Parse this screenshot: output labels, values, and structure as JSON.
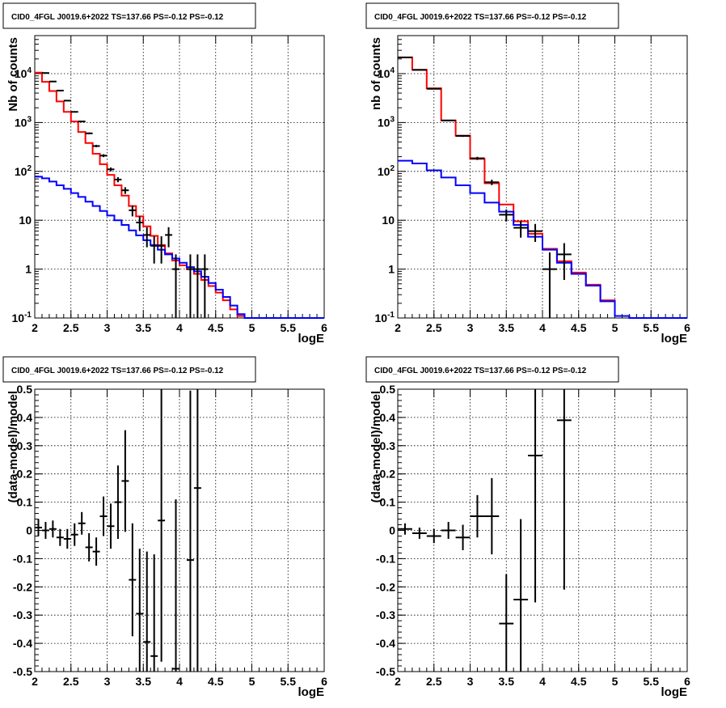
{
  "panels": [
    {
      "title": "CID0_4FGL J0019.6+2022 TS=137.66 PS=-0.12 PS=-0.12",
      "xlabel": "logE",
      "ylabel": "Nb of counts"
    },
    {
      "title": "CID0_4FGL J0019.6+2022 TS=137.66 PS=-0.12 PS=-0.12",
      "xlabel": "logE",
      "ylabel": "nb of counts"
    },
    {
      "title": "CID0_4FGL J0019.6+2022 TS=137.66 PS=-0.12 PS=-0.12",
      "xlabel": "logE",
      "ylabel": "(data-model)/model"
    },
    {
      "title": "CID0_4FGL J0019.6+2022 TS=137.66 PS=-0.12 PS=-0.12",
      "xlabel": "logE",
      "ylabel": "(data-model)/model"
    }
  ],
  "colors": {
    "data": "#000000",
    "total_model": "#ff0000",
    "background_model": "#0000ff",
    "grid": "#000000"
  },
  "chart_data": [
    {
      "type": "line",
      "title": "CID0_4FGL J0019.6+2022 TS=137.66 PS=-0.12 PS=-0.12",
      "xlabel": "logE",
      "ylabel": "Nb of counts",
      "xlim": [
        2,
        6
      ],
      "ylim": [
        0.1,
        60000
      ],
      "yscale": "log",
      "grid": true,
      "xticks": [
        "2",
        "2.5",
        "3",
        "3.5",
        "4",
        "4.5",
        "5",
        "5.5",
        "6"
      ],
      "yticks": [
        "10^-1",
        "1",
        "10",
        "10^2",
        "10^3",
        "10^4"
      ],
      "bin_edges": [
        2,
        2.1,
        2.2,
        2.3,
        2.4,
        2.5,
        2.6,
        2.7,
        2.8,
        2.9,
        3,
        3.1,
        3.2,
        3.3,
        3.4,
        3.5,
        3.6,
        3.7,
        3.8,
        3.9,
        4,
        4.1,
        4.2,
        4.3,
        4.4,
        4.5,
        4.6,
        4.7,
        4.8,
        4.9,
        5,
        5.1,
        5.2,
        5.3,
        5.4,
        5.5,
        5.6,
        5.7,
        5.8,
        5.9,
        6
      ],
      "series": [
        {
          "name": "",
          "style": "step",
          "color": "#ff0000",
          "values": [
            10500,
            6800,
            4400,
            2700,
            1650,
            1050,
            640,
            380,
            230,
            140,
            85,
            52,
            32,
            19.5,
            12,
            7.5,
            4.8,
            3.1,
            2.1,
            1.5,
            1.2,
            1.0,
            0.8,
            0.6,
            0.45,
            0.33,
            0.23,
            0.15,
            0.11,
            0.1,
            0.1,
            0.1,
            0.1,
            0.1,
            0.1,
            0.1,
            0.1,
            0.1,
            0.1,
            0.1
          ]
        },
        {
          "name": "",
          "style": "step",
          "color": "#0000ff",
          "values": [
            78,
            72,
            62,
            52,
            44,
            36,
            30,
            24,
            19.5,
            15.5,
            12.5,
            10,
            8,
            6.2,
            4.9,
            3.9,
            3.1,
            2.5,
            2,
            1.65,
            1.35,
            1.1,
            0.9,
            0.7,
            0.52,
            0.38,
            0.27,
            0.18,
            0.12,
            0.1,
            0.1,
            0.1,
            0.1,
            0.1,
            0.1,
            0.1,
            0.1,
            0.1,
            0.1,
            0.1
          ]
        },
        {
          "name": "",
          "style": "errorbar",
          "color": "#000000",
          "x": [
            2.15,
            2.25,
            2.35,
            2.45,
            2.55,
            2.65,
            2.75,
            2.85,
            2.95,
            3.05,
            3.15,
            3.25,
            3.35,
            3.45,
            3.55,
            3.65,
            3.75,
            3.85,
            3.95,
            4.15,
            4.25,
            4.35
          ],
          "values": [
            10300,
            6900,
            4500,
            2800,
            1650,
            1050,
            600,
            330,
            210,
            110,
            68,
            41,
            16,
            9,
            5,
            3,
            3,
            5,
            1,
            1,
            1,
            1
          ],
          "yerr_low": [
            100,
            85,
            67,
            53,
            41,
            32,
            24,
            18,
            14,
            10,
            8,
            6.4,
            4,
            3,
            2.2,
            1.7,
            1.7,
            2.2,
            0.9,
            0.9,
            0.9,
            0.9
          ],
          "yerr_high": [
            100,
            85,
            67,
            53,
            41,
            32,
            24,
            18,
            14,
            10,
            8,
            6.4,
            4,
            3,
            2.2,
            1.7,
            1.7,
            2.2,
            1,
            1,
            1,
            1
          ]
        }
      ]
    },
    {
      "type": "line",
      "title": "CID0_4FGL J0019.6+2022 TS=137.66 PS=-0.12 PS=-0.12",
      "xlabel": "logE",
      "ylabel": "nb of counts",
      "xlim": [
        2,
        6
      ],
      "ylim": [
        0.1,
        60000
      ],
      "yscale": "log",
      "grid": true,
      "xticks": [
        "2",
        "2.5",
        "3",
        "3.5",
        "4",
        "4.5",
        "5",
        "5.5",
        "6"
      ],
      "yticks": [
        "10^-1",
        "1",
        "10",
        "10^2",
        "10^3",
        "10^4"
      ],
      "bin_edges": [
        2,
        2.2,
        2.4,
        2.6,
        2.8,
        3,
        3.2,
        3.4,
        3.6,
        3.8,
        4,
        4.2,
        4.4,
        4.6,
        4.8,
        5,
        5.2,
        5.4,
        5.6,
        5.8,
        6
      ],
      "series": [
        {
          "name": "",
          "style": "step",
          "color": "#ff0000",
          "values": [
            21500,
            12000,
            5000,
            1100,
            540,
            180,
            57,
            21,
            9.5,
            5.3,
            2.6,
            1.45,
            0.85,
            0.48,
            0.23,
            0.11,
            0.1,
            0.1,
            0.1,
            0.1
          ]
        },
        {
          "name": "",
          "style": "step",
          "color": "#0000ff",
          "values": [
            165,
            145,
            105,
            75,
            52,
            36,
            23,
            15,
            8,
            4.6,
            2.5,
            1.35,
            0.8,
            0.46,
            0.22,
            0.11,
            0.1,
            0.1,
            0.1,
            0.1
          ]
        },
        {
          "name": "",
          "style": "errorbar",
          "color": "#000000",
          "x": [
            2.1,
            2.3,
            2.5,
            2.7,
            2.9,
            3.1,
            3.3,
            3.5,
            3.7,
            3.9,
            4.1,
            4.3
          ],
          "values": [
            21400,
            11900,
            4900,
            1100,
            530,
            185,
            60,
            13,
            7,
            6,
            1,
            2
          ],
          "yerr_low": [
            146,
            109,
            70,
            33,
            23,
            13.6,
            7.7,
            3.6,
            2.6,
            2.4,
            0.9,
            1.4
          ],
          "yerr_high": [
            146,
            109,
            70,
            33,
            23,
            13.6,
            7.7,
            3.6,
            2.6,
            2.4,
            1.2,
            1.4
          ]
        }
      ]
    },
    {
      "type": "scatter",
      "title": "CID0_4FGL J0019.6+2022 TS=137.66 PS=-0.12 PS=-0.12",
      "xlabel": "logE",
      "ylabel": "(data-model)/model",
      "xlim": [
        2,
        6
      ],
      "ylim": [
        -0.5,
        0.5
      ],
      "grid": true,
      "xticks": [
        "2",
        "2.5",
        "3",
        "3.5",
        "4",
        "4.5",
        "5",
        "5.5",
        "6"
      ],
      "yticks": [
        "-0.5",
        "-0.4",
        "-0.3",
        "-0.2",
        "-0.1",
        "0",
        "0.1",
        "0.2",
        "0.3",
        "0.4",
        "0.5"
      ],
      "xwidth": 0.1,
      "x": [
        2.05,
        2.15,
        2.25,
        2.35,
        2.45,
        2.55,
        2.65,
        2.75,
        2.85,
        2.95,
        3.05,
        3.15,
        3.25,
        3.35,
        3.45,
        3.55,
        3.65,
        3.75,
        3.95,
        4.15,
        4.25
      ],
      "values": [
        0.01,
        0.0,
        0.005,
        -0.025,
        -0.03,
        -0.015,
        0.025,
        -0.06,
        -0.075,
        0.05,
        0.015,
        0.1,
        0.175,
        -0.175,
        -0.295,
        -0.395,
        -0.445,
        0.035,
        -0.49,
        -0.105,
        0.15
      ],
      "yerr": [
        0.03,
        0.03,
        0.03,
        0.03,
        0.035,
        0.04,
        0.04,
        0.05,
        0.05,
        0.07,
        0.08,
        0.13,
        0.18,
        0.2,
        0.23,
        0.32,
        0.36,
        0.5,
        0.6,
        0.6,
        0.7
      ]
    },
    {
      "type": "scatter",
      "title": "CID0_4FGL J0019.6+2022 TS=137.66 PS=-0.12 PS=-0.12",
      "xlabel": "logE",
      "ylabel": "(data-model)/model",
      "xlim": [
        2,
        6
      ],
      "ylim": [
        -0.5,
        0.5
      ],
      "grid": true,
      "xticks": [
        "2",
        "2.5",
        "3",
        "3.5",
        "4",
        "4.5",
        "5",
        "5.5",
        "6"
      ],
      "yticks": [
        "-0.5",
        "-0.4",
        "-0.3",
        "-0.2",
        "-0.1",
        "0",
        "0.1",
        "0.2",
        "0.3",
        "0.4",
        "0.5"
      ],
      "xwidth": 0.2,
      "x": [
        2.1,
        2.3,
        2.5,
        2.7,
        2.9,
        3.1,
        3.3,
        3.5,
        3.7,
        3.9,
        4.3
      ],
      "values": [
        0.005,
        -0.01,
        -0.02,
        0.0,
        -0.025,
        0.05,
        0.05,
        -0.33,
        -0.245,
        0.265,
        0.39
      ],
      "yerr": [
        0.02,
        0.02,
        0.025,
        0.03,
        0.045,
        0.075,
        0.135,
        0.175,
        0.285,
        0.52,
        0.6
      ]
    }
  ]
}
